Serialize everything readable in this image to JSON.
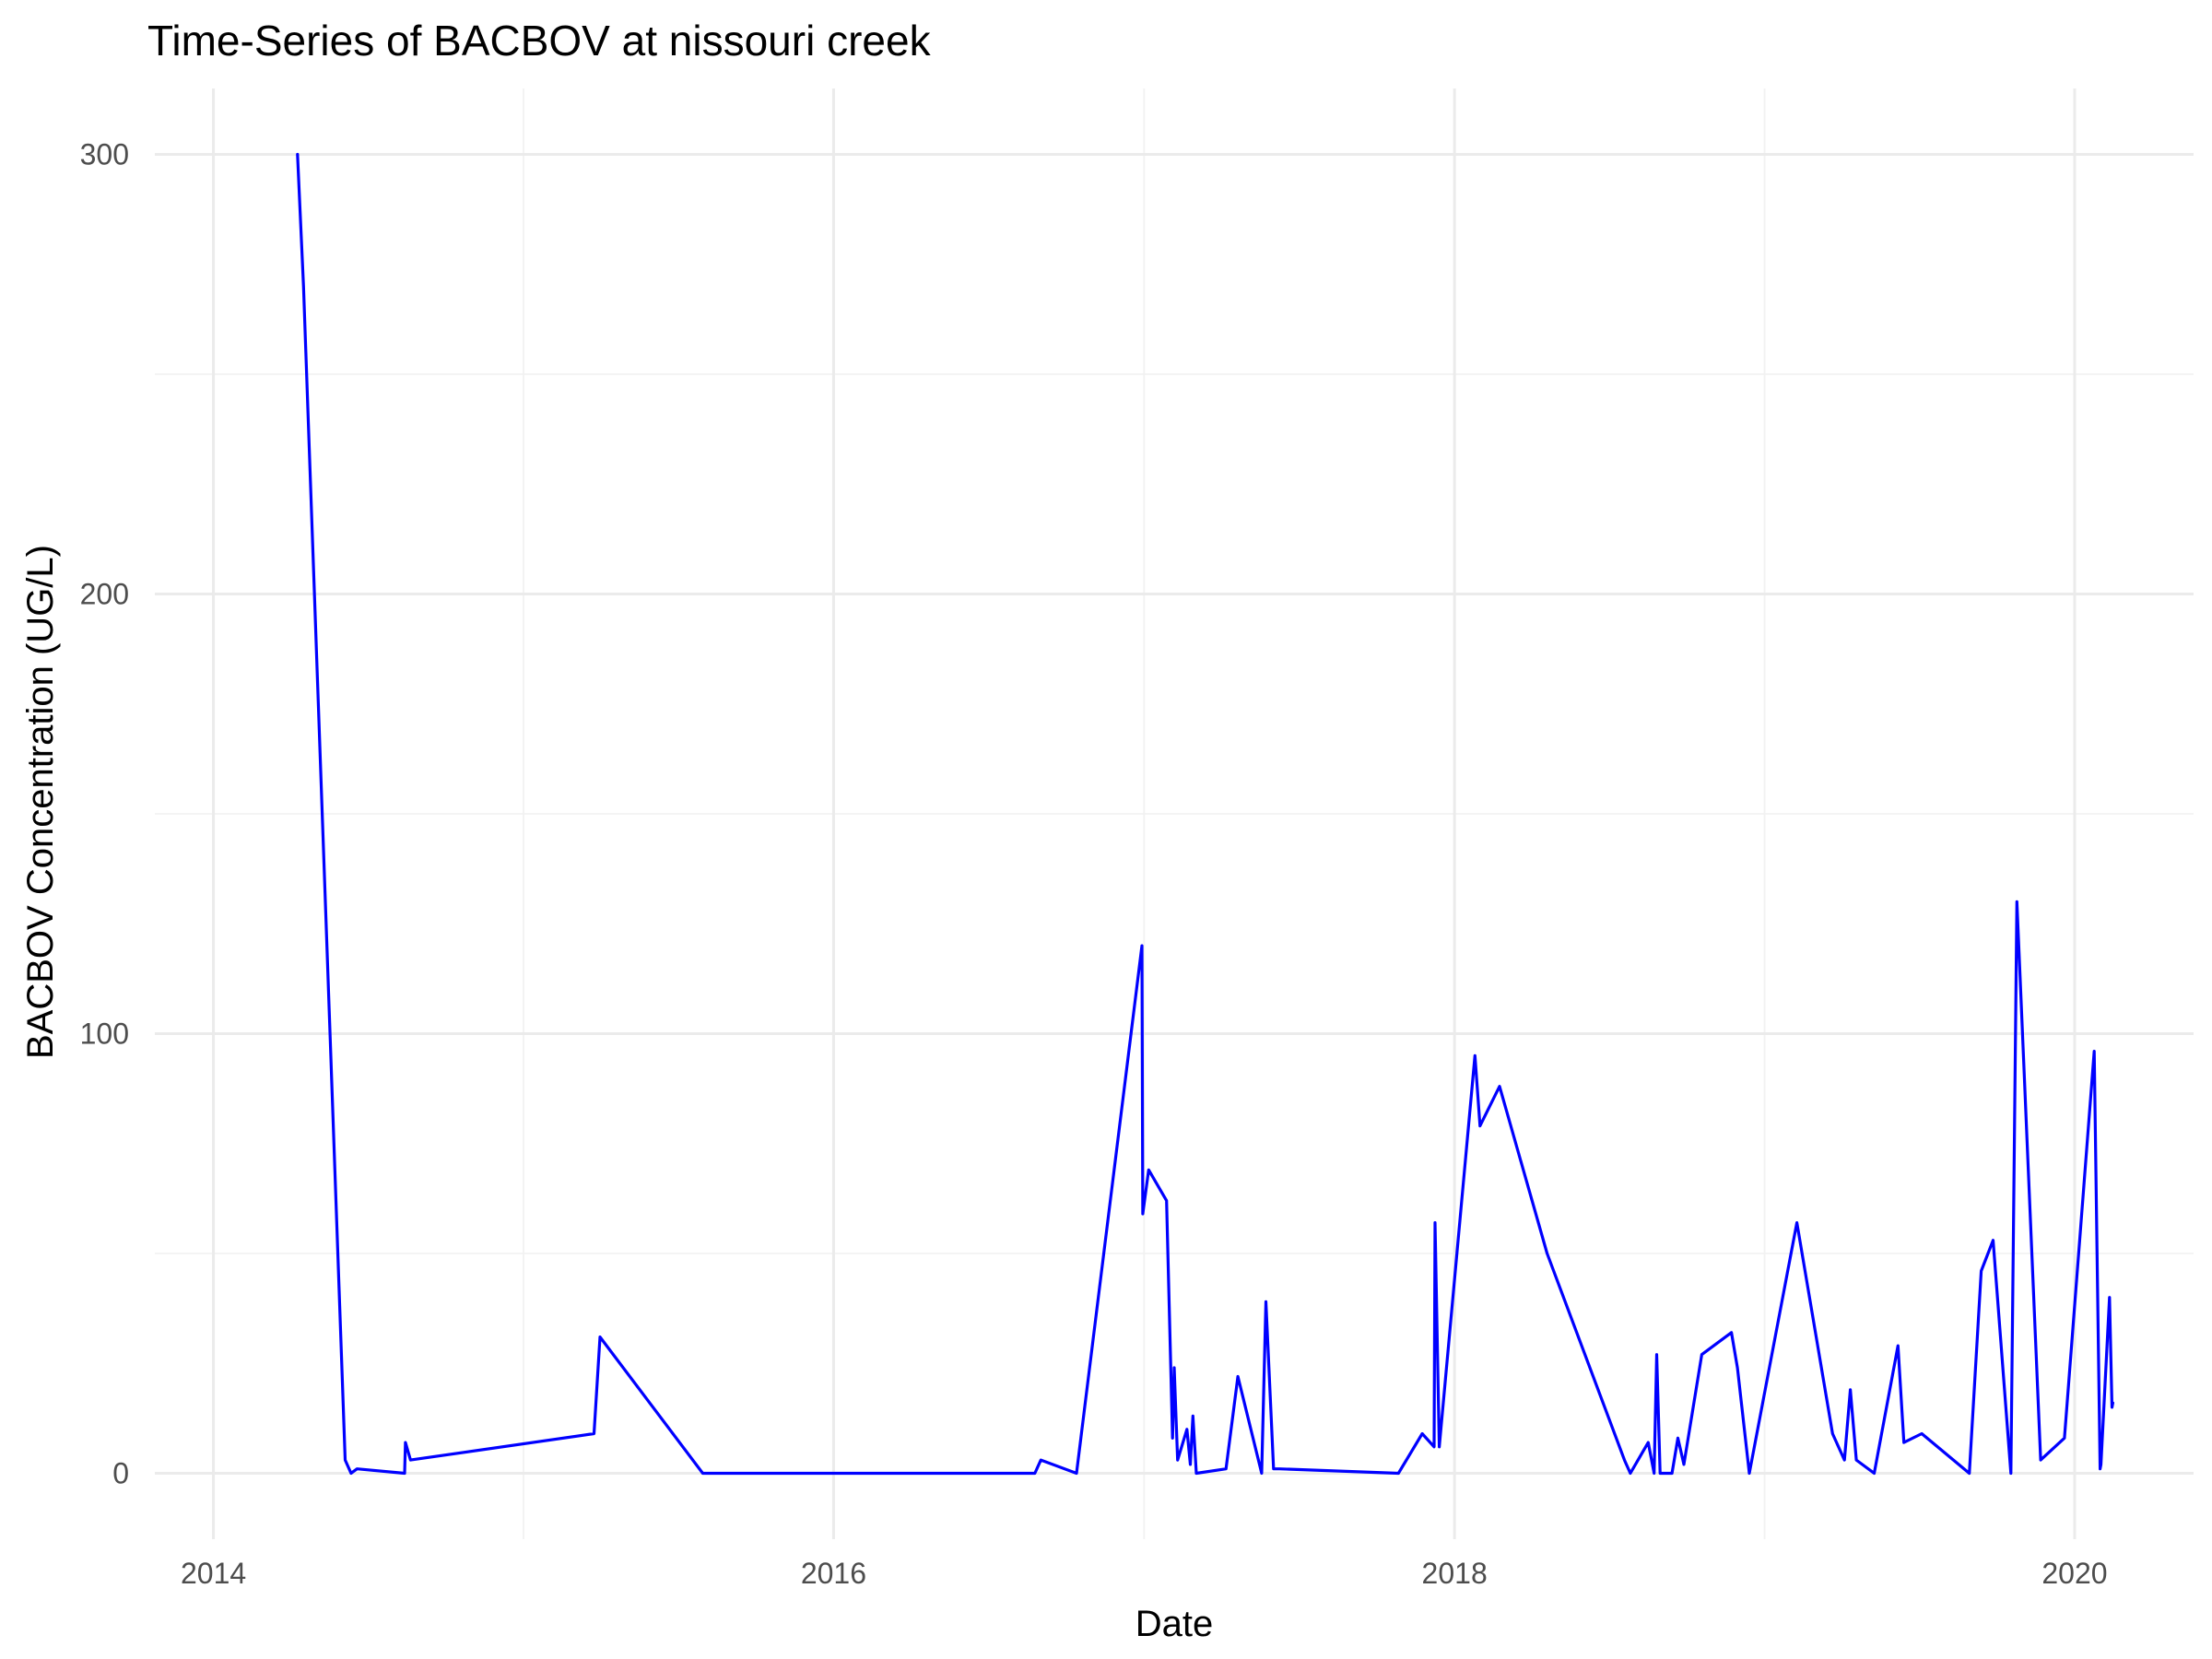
{
  "chart_data": {
    "type": "line",
    "title": "Time-Series of BACBOV at nissouri creek",
    "xlabel": "Date",
    "ylabel": "BACBOV Concentration (UG/L)",
    "xlim": [
      "2013-10-24",
      "2020-05-20"
    ],
    "ylim": [
      -15,
      315
    ],
    "x_ticks": [
      "2014-01-01",
      "2016-01-01",
      "2018-01-01",
      "2020-01-01"
    ],
    "x_tick_labels": [
      "2014",
      "2016",
      "2018",
      "2020"
    ],
    "y_ticks": [
      0,
      100,
      200,
      300
    ],
    "y_tick_labels": [
      "0",
      "100",
      "200",
      "300"
    ],
    "grid": true,
    "legend": "none",
    "colors": {
      "line": "#0000ff"
    },
    "series": [
      {
        "x": [
          "2014-04-10",
          "2014-04-17",
          "2014-06-05",
          "2014-06-12",
          "2014-06-19",
          "2014-08-14",
          "2014-08-15",
          "2014-08-21",
          "2015-03-25",
          "2015-04-01",
          "2015-07-31",
          "2016-08-25",
          "2016-09-01",
          "2016-10-13",
          "2016-12-29",
          "2016-12-30",
          "2017-01-06",
          "2017-01-27",
          "2017-02-03",
          "2017-02-05",
          "2017-02-09",
          "2017-02-20",
          "2017-02-24",
          "2017-02-27",
          "2017-03-03",
          "2017-04-07",
          "2017-04-21",
          "2017-05-19",
          "2017-05-24",
          "2017-06-02",
          "2017-06-09",
          "2017-10-27",
          "2017-11-24",
          "2017-12-08",
          "2017-12-09",
          "2017-12-14",
          "2018-01-25",
          "2018-01-31",
          "2018-02-23",
          "2018-04-20",
          "2018-07-20",
          "2018-07-27",
          "2018-08-17",
          "2018-08-24",
          "2018-08-27",
          "2018-08-31",
          "2018-09-14",
          "2018-09-21",
          "2018-09-28",
          "2018-10-19",
          "2018-11-23",
          "2018-11-30",
          "2018-12-14",
          "2019-02-08",
          "2019-03-22",
          "2019-04-05",
          "2019-04-12",
          "2019-04-19",
          "2019-05-10",
          "2019-06-07",
          "2019-06-14",
          "2019-07-05",
          "2019-08-30",
          "2019-09-13",
          "2019-09-27",
          "2019-10-18",
          "2019-10-25",
          "2019-11-22",
          "2019-12-20",
          "2020-01-24",
          "2020-01-31",
          "2020-02-01",
          "2020-02-11",
          "2020-02-14",
          "2020-02-15"
        ],
        "y": [
          300,
          270,
          3,
          0,
          1,
          0,
          7,
          3,
          9,
          31,
          0,
          0,
          3,
          0,
          120,
          59,
          69,
          62,
          8,
          24,
          3,
          10,
          2,
          13,
          0,
          1,
          22,
          0,
          39,
          1,
          1,
          0,
          9,
          6,
          57,
          6,
          95,
          79,
          88,
          50,
          3,
          0,
          7,
          0,
          27,
          0,
          0,
          8,
          2,
          27,
          32,
          24,
          0,
          57,
          9,
          3,
          19,
          3,
          0,
          29,
          7,
          9,
          0,
          46,
          53,
          0,
          130,
          3,
          8,
          96,
          1,
          2,
          40,
          15,
          16
        ]
      }
    ]
  }
}
